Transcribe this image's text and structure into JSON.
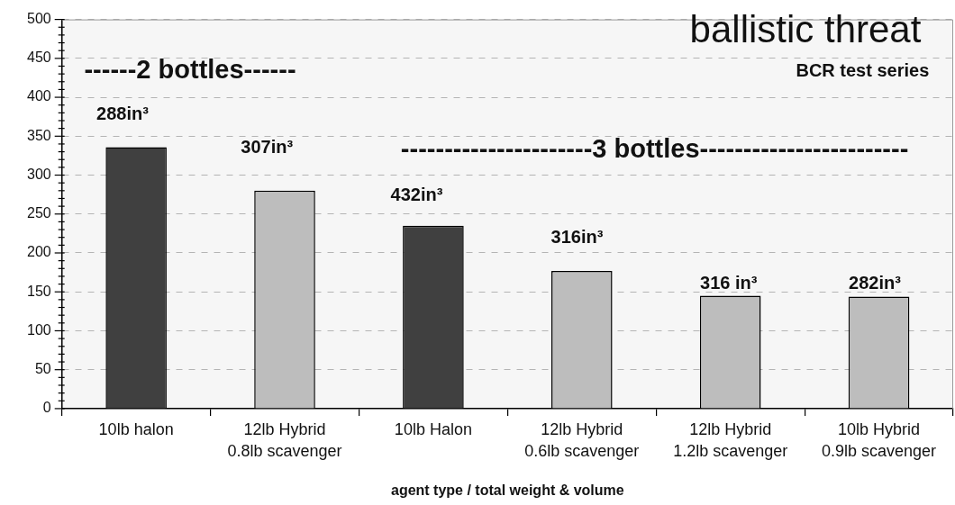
{
  "chart_data": {
    "type": "bar",
    "title": "ballistic threat",
    "xlabel": "agent type / total weight & volume",
    "categories": [
      "10lb halon",
      "12lb Hybrid\n0.8lb scavenger",
      "10lb Halon",
      "12lb Hybrid\n0.6lb scavenger",
      "12lb Hybrid\n1.2lb scavenger",
      "10lb Hybrid\n0.9lb scavenger"
    ],
    "values": [
      336,
      280,
      235,
      177,
      145,
      144
    ],
    "colors": [
      "#404040",
      "#bdbdbd",
      "#404040",
      "#bdbdbd",
      "#bdbdbd",
      "#bdbdbd"
    ],
    "ylim": [
      0,
      500
    ],
    "yticks": [
      0,
      {
        "value": 10,
        "label": null
      },
      {
        "value": 20,
        "label": null
      },
      {
        "value": 30,
        "label": null
      },
      {
        "value": 40,
        "label": null
      },
      50,
      {
        "value": 60,
        "label": null
      },
      {
        "value": 70,
        "label": null
      },
      {
        "value": 80,
        "label": null
      },
      {
        "value": 90,
        "label": null
      },
      100,
      {
        "value": 110,
        "label": null
      },
      {
        "value": 120,
        "label": null
      },
      {
        "value": 130,
        "label": null
      },
      {
        "value": 140,
        "label": null
      },
      150,
      {
        "value": 160,
        "label": null
      },
      {
        "value": 170,
        "label": null
      },
      {
        "value": 180,
        "label": null
      },
      {
        "value": 190,
        "label": null
      },
      200,
      {
        "value": 210,
        "label": null
      },
      {
        "value": 220,
        "label": null
      },
      {
        "value": 230,
        "label": null
      },
      {
        "value": 240,
        "label": null
      },
      250,
      {
        "value": 260,
        "label": null
      },
      {
        "value": 270,
        "label": null
      },
      {
        "value": 280,
        "label": null
      },
      {
        "value": 290,
        "label": null
      },
      300,
      {
        "value": 310,
        "label": null
      },
      {
        "value": 320,
        "label": null
      },
      {
        "value": 330,
        "label": null
      },
      {
        "value": 340,
        "label": null
      },
      350,
      {
        "value": 360,
        "label": null
      },
      {
        "value": 370,
        "label": null
      },
      {
        "value": 380,
        "label": null
      },
      {
        "value": 390,
        "label": null
      },
      400,
      {
        "value": 410,
        "label": null
      },
      {
        "value": 420,
        "label": null
      },
      {
        "value": 430,
        "label": null
      },
      {
        "value": 440,
        "label": null
      },
      450,
      {
        "value": 460,
        "label": null
      },
      {
        "value": 470,
        "label": null
      },
      {
        "value": 480,
        "label": null
      },
      {
        "value": 490,
        "label": null
      },
      500
    ],
    "grid": "y",
    "annotations": [
      "BCR test series",
      "------2 bottles------",
      "----------------------3 bottles------------------------",
      "288in³",
      "307in³",
      "432in³",
      "316in³",
      "316 in³",
      "282in³"
    ]
  }
}
